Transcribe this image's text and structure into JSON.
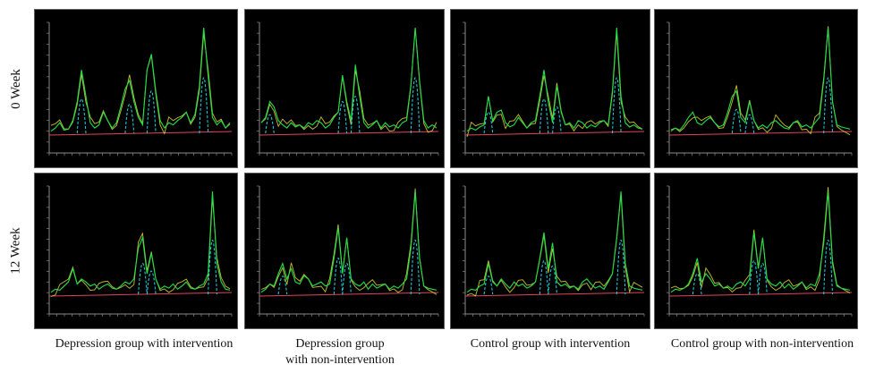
{
  "row_labels": [
    "0 Week",
    "12 Week"
  ],
  "captions": [
    {
      "line1": "Depression group with intervention",
      "line2": ""
    },
    {
      "line1": "Depression group",
      "line2": "with non-intervention"
    },
    {
      "line1": "Control group with intervention",
      "line2": ""
    },
    {
      "line1": "Control group with non-intervention",
      "line2": ""
    }
  ],
  "colors": {
    "trace_green": "#22e04a",
    "trace_yellow": "#e8e23a",
    "fit_cyan": "#18d8e8",
    "baseline": "#e0455a",
    "axis": "#8a8a8a"
  },
  "chart_data": [
    {
      "type": "line",
      "panel": "0 Week / Depression group with intervention",
      "series": [
        {
          "values": [
            0.02,
            0.05,
            0.1,
            0.03,
            0.04,
            0.12,
            0.3,
            0.6,
            0.35,
            0.1,
            0.05,
            0.08,
            0.2,
            0.12,
            0.05,
            0.1,
            0.25,
            0.42,
            0.5,
            0.3,
            0.15,
            0.08,
            0.6,
            0.75,
            0.4,
            0.12,
            0.05,
            0.1,
            0.08,
            0.12,
            0.15,
            0.2,
            0.1,
            0.18,
            0.45,
            1.0,
            0.55,
            0.15,
            0.08,
            0.12,
            0.05,
            0.1
          ]
        }
      ]
    },
    {
      "type": "line",
      "panel": "0 Week / Depression group with non-intervention",
      "series": [
        {
          "values": [
            0.1,
            0.15,
            0.3,
            0.25,
            0.12,
            0.08,
            0.05,
            0.1,
            0.06,
            0.08,
            0.05,
            0.1,
            0.08,
            0.12,
            0.1,
            0.05,
            0.08,
            0.15,
            0.2,
            0.55,
            0.3,
            0.12,
            0.65,
            0.35,
            0.1,
            0.05,
            0.08,
            0.12,
            0.05,
            0.1,
            0.06,
            0.08,
            0.05,
            0.1,
            0.12,
            0.45,
            1.0,
            0.5,
            0.12,
            0.05,
            0.08,
            0.05
          ]
        }
      ]
    },
    {
      "type": "line",
      "panel": "0 Week / Control group with intervention",
      "series": [
        {
          "values": [
            0.02,
            0.05,
            0.03,
            0.06,
            0.08,
            0.35,
            0.12,
            0.2,
            0.22,
            0.1,
            0.06,
            0.08,
            0.15,
            0.1,
            0.05,
            0.1,
            0.12,
            0.35,
            0.6,
            0.3,
            0.1,
            0.45,
            0.2,
            0.08,
            0.1,
            0.05,
            0.12,
            0.1,
            0.05,
            0.08,
            0.06,
            0.1,
            0.12,
            0.08,
            0.4,
            1.0,
            0.35,
            0.1,
            0.06,
            0.08,
            0.05,
            0.04
          ]
        }
      ]
    },
    {
      "type": "line",
      "panel": "0 Week / Control group with non-intervention",
      "series": [
        {
          "values": [
            0.02,
            0.05,
            0.03,
            0.08,
            0.15,
            0.2,
            0.1,
            0.08,
            0.12,
            0.15,
            0.1,
            0.06,
            0.08,
            0.2,
            0.35,
            0.4,
            0.15,
            0.1,
            0.3,
            0.12,
            0.05,
            0.08,
            0.05,
            0.1,
            0.12,
            0.08,
            0.05,
            0.04,
            0.1,
            0.12,
            0.06,
            0.08,
            0.05,
            0.1,
            0.15,
            0.5,
            1.0,
            0.3,
            0.08,
            0.06,
            0.05,
            0.04
          ]
        }
      ]
    },
    {
      "type": "line",
      "panel": "12 Week / Depression group with intervention",
      "series": [
        {
          "values": [
            0.02,
            0.05,
            0.04,
            0.08,
            0.12,
            0.25,
            0.1,
            0.15,
            0.12,
            0.08,
            0.1,
            0.05,
            0.08,
            0.1,
            0.06,
            0.05,
            0.08,
            0.12,
            0.1,
            0.15,
            0.45,
            0.55,
            0.2,
            0.4,
            0.15,
            0.05,
            0.08,
            0.06,
            0.1,
            0.05,
            0.08,
            0.12,
            0.06,
            0.05,
            0.08,
            0.1,
            0.2,
            1.0,
            0.3,
            0.12,
            0.05,
            0.04
          ]
        }
      ]
    },
    {
      "type": "line",
      "panel": "12 Week / Depression group with non-intervention",
      "series": [
        {
          "values": [
            0.02,
            0.05,
            0.1,
            0.08,
            0.2,
            0.3,
            0.15,
            0.25,
            0.12,
            0.1,
            0.18,
            0.15,
            0.08,
            0.1,
            0.12,
            0.08,
            0.1,
            0.35,
            0.65,
            0.2,
            0.55,
            0.15,
            0.1,
            0.08,
            0.12,
            0.05,
            0.1,
            0.06,
            0.08,
            0.1,
            0.05,
            0.08,
            0.06,
            0.1,
            0.15,
            0.45,
            1.0,
            0.35,
            0.08,
            0.06,
            0.05,
            0.04
          ]
        }
      ]
    },
    {
      "type": "line",
      "panel": "12 Week / Control group with intervention",
      "series": [
        {
          "values": [
            0.02,
            0.05,
            0.04,
            0.08,
            0.1,
            0.3,
            0.12,
            0.08,
            0.15,
            0.1,
            0.06,
            0.12,
            0.08,
            0.1,
            0.06,
            0.08,
            0.12,
            0.35,
            0.6,
            0.25,
            0.5,
            0.12,
            0.08,
            0.1,
            0.06,
            0.08,
            0.05,
            0.12,
            0.15,
            0.1,
            0.06,
            0.08,
            0.05,
            0.12,
            0.2,
            0.55,
            1.0,
            0.3,
            0.08,
            0.06,
            0.05,
            0.04
          ]
        }
      ]
    },
    {
      "type": "line",
      "panel": "12 Week / Control group with non-intervention",
      "series": [
        {
          "values": [
            0.02,
            0.05,
            0.04,
            0.06,
            0.1,
            0.2,
            0.35,
            0.12,
            0.2,
            0.15,
            0.08,
            0.1,
            0.06,
            0.08,
            0.05,
            0.1,
            0.12,
            0.08,
            0.15,
            0.6,
            0.25,
            0.55,
            0.15,
            0.1,
            0.08,
            0.12,
            0.06,
            0.1,
            0.05,
            0.08,
            0.12,
            0.06,
            0.1,
            0.08,
            0.2,
            0.5,
            1.0,
            0.3,
            0.08,
            0.06,
            0.05,
            0.04
          ]
        }
      ]
    }
  ]
}
